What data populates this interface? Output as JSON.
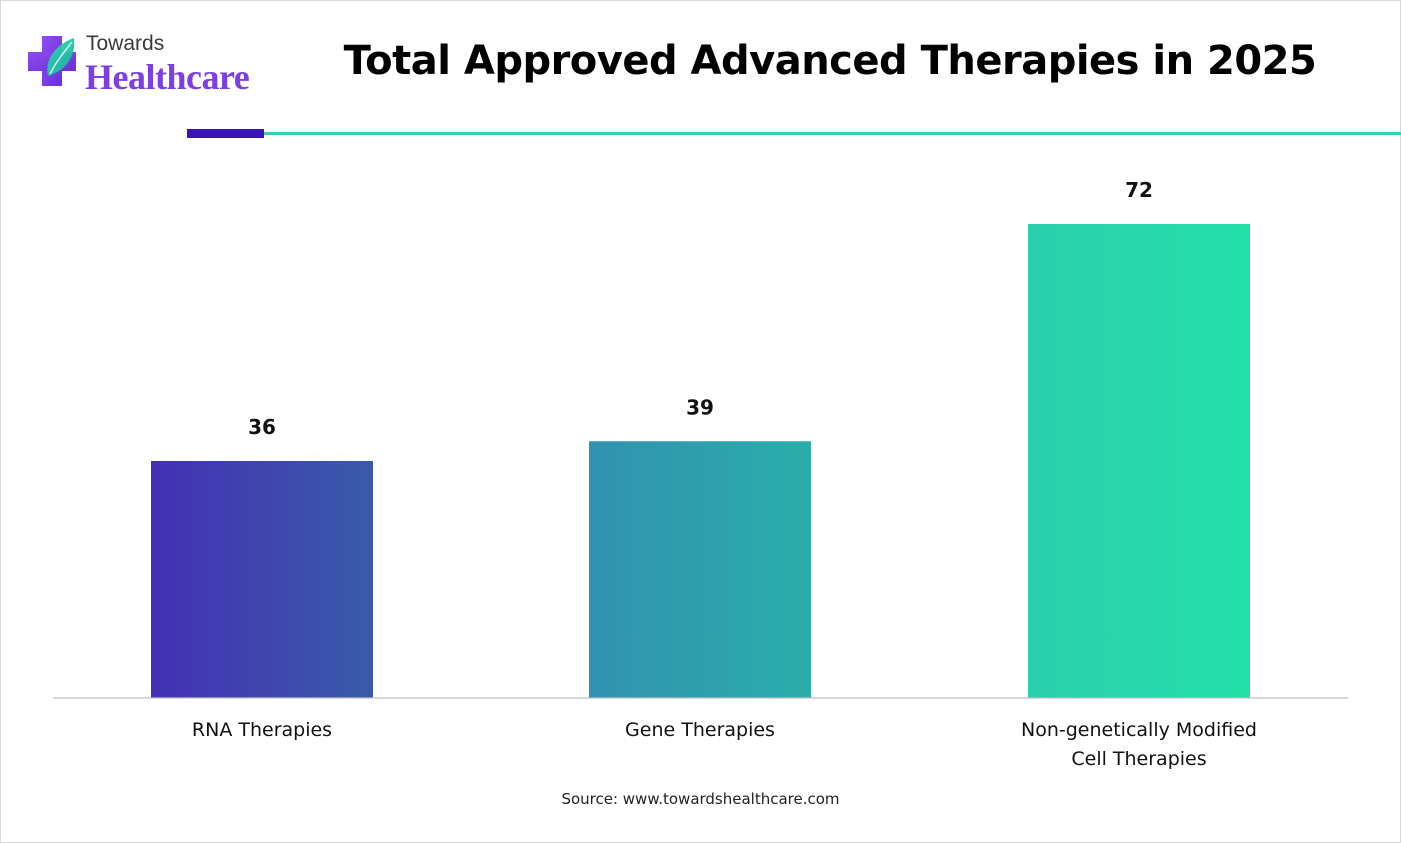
{
  "brand": {
    "line1": "Towards",
    "line2": "Healthcare",
    "colors": {
      "primary": "#7b3fe4",
      "accent": "#2fd5ae",
      "dark": "#3a12b5"
    },
    "icon": "medical-cross-leaf-icon"
  },
  "chart_data": {
    "type": "bar",
    "title": "Total Approved Advanced Therapies in 2025",
    "categories": [
      "RNA Therapies",
      "Gene Therapies",
      "Non-genetically Modified Cell Therapies"
    ],
    "values": [
      36,
      39,
      72
    ],
    "data_labels": [
      "36",
      "39",
      "72"
    ],
    "xlabel": "",
    "ylabel": "",
    "ylim": [
      0,
      80
    ],
    "grid": false,
    "legend": "none",
    "bar_gradients": [
      [
        "#4330b5",
        "#3a5ba8"
      ],
      [
        "#3192b0",
        "#2aaeaa"
      ],
      [
        "#2bcfae",
        "#22e0a7"
      ]
    ]
  },
  "footer": {
    "source": "Source: www.towardshealthcare.com"
  }
}
